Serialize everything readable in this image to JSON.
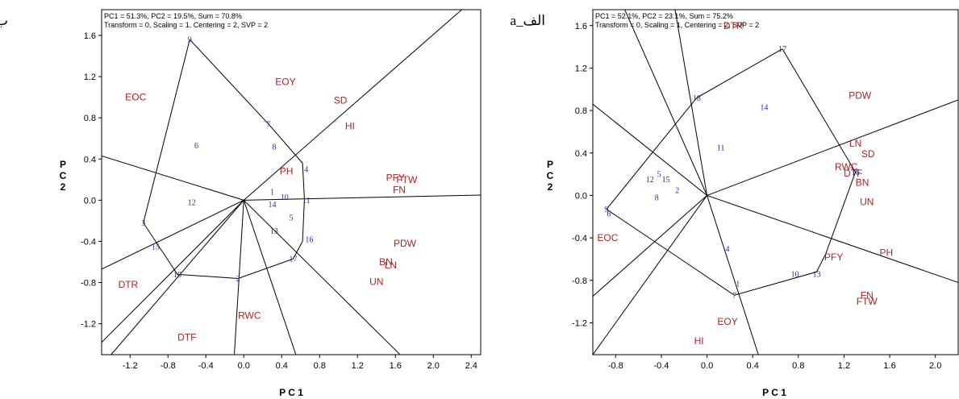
{
  "chart_data": [
    {
      "type": "scatter",
      "panel_label": "ب_b",
      "header_line1": "PC1 = 51.3%, PC2 = 19.5%, Sum = 70.8%",
      "header_line2": "Transform = 0, Scaling = 1, Centering = 2, SVP = 2",
      "xlabel": "P C 1",
      "ylabel": "P C 2",
      "xlim": [
        -1.5,
        2.5
      ],
      "ylim": [
        -1.5,
        1.85
      ],
      "xticks": [
        -1.2,
        -0.8,
        -0.4,
        0.0,
        0.4,
        0.8,
        1.2,
        1.6,
        2.0,
        2.4
      ],
      "yticks": [
        -1.2,
        -0.8,
        -0.4,
        0.0,
        0.4,
        0.8,
        1.2,
        1.6
      ],
      "trait_color": "#b22222",
      "genotype_color": "#1f2fb0",
      "traits": [
        {
          "label": "EOC",
          "x": -1.14,
          "y": 1.0
        },
        {
          "label": "EOY",
          "x": 0.44,
          "y": 1.15
        },
        {
          "label": "SD",
          "x": 1.02,
          "y": 0.97
        },
        {
          "label": "HI",
          "x": 1.12,
          "y": 0.72
        },
        {
          "label": "PH",
          "x": 0.45,
          "y": 0.28
        },
        {
          "label": "PFY",
          "x": 1.6,
          "y": 0.22
        },
        {
          "label": "FTW",
          "x": 1.72,
          "y": 0.2
        },
        {
          "label": "FN",
          "x": 1.64,
          "y": 0.1
        },
        {
          "label": "PDW",
          "x": 1.7,
          "y": -0.42
        },
        {
          "label": "BN",
          "x": 1.5,
          "y": -0.6
        },
        {
          "label": "LN",
          "x": 1.55,
          "y": -0.63
        },
        {
          "label": "UN",
          "x": 1.4,
          "y": -0.79
        },
        {
          "label": "DTR",
          "x": -1.22,
          "y": -0.82
        },
        {
          "label": "RWC",
          "x": 0.06,
          "y": -1.12
        },
        {
          "label": "DTF",
          "x": -0.6,
          "y": -1.33
        }
      ],
      "genotypes": [
        {
          "label": "9",
          "x": -0.57,
          "y": 1.56
        },
        {
          "label": "7",
          "x": 0.26,
          "y": 0.74
        },
        {
          "label": "6",
          "x": -0.5,
          "y": 0.53
        },
        {
          "label": "8",
          "x": 0.32,
          "y": 0.52
        },
        {
          "label": "4",
          "x": 0.66,
          "y": 0.3
        },
        {
          "label": "1",
          "x": 0.3,
          "y": 0.08
        },
        {
          "label": "10",
          "x": 0.43,
          "y": 0.03
        },
        {
          "label": "11",
          "x": 0.66,
          "y": 0.0
        },
        {
          "label": "12",
          "x": -0.55,
          "y": -0.02
        },
        {
          "label": "14",
          "x": 0.3,
          "y": -0.04
        },
        {
          "label": "5",
          "x": 0.5,
          "y": -0.17
        },
        {
          "label": "3",
          "x": -1.06,
          "y": -0.22
        },
        {
          "label": "13",
          "x": 0.32,
          "y": -0.3
        },
        {
          "label": "16",
          "x": 0.69,
          "y": -0.38
        },
        {
          "label": "15",
          "x": -0.93,
          "y": -0.45
        },
        {
          "label": "17",
          "x": 0.52,
          "y": -0.57
        },
        {
          "label": "18",
          "x": -0.7,
          "y": -0.72
        },
        {
          "label": "2",
          "x": -0.06,
          "y": -0.76
        }
      ],
      "hull": [
        [
          -0.57,
          1.56
        ],
        [
          0.26,
          0.74
        ],
        [
          0.62,
          0.36
        ],
        [
          0.64,
          0.01
        ],
        [
          0.62,
          -0.4
        ],
        [
          0.52,
          -0.57
        ],
        [
          -0.06,
          -0.76
        ],
        [
          -0.7,
          -0.72
        ],
        [
          -1.06,
          -0.22
        ],
        [
          -0.57,
          1.56
        ]
      ],
      "rays": [
        [
          -1.5,
          0.43
        ],
        [
          2.5,
          0.05
        ],
        [
          2.3,
          1.85
        ],
        [
          -1.5,
          -0.67
        ],
        [
          -1.5,
          -1.38
        ],
        [
          -1.4,
          -1.5
        ],
        [
          -0.1,
          -1.5
        ],
        [
          0.55,
          -1.5
        ],
        [
          1.65,
          -1.5
        ]
      ]
    },
    {
      "type": "scatter",
      "panel_label": "الف_a",
      "header_line1": "PC1 = 52.1%, PC2 = 23.1%, Sum = 75.2%",
      "header_line2": "Transform = 0, Scaling = 1, Centering = 2, SVP = 2",
      "xlabel": "P C 1",
      "ylabel": "P C 2",
      "xlim": [
        -1.0,
        2.2
      ],
      "ylim": [
        -1.5,
        1.75
      ],
      "xticks": [
        -0.8,
        -0.4,
        0.0,
        0.4,
        0.8,
        1.2,
        1.6,
        2.0
      ],
      "yticks": [
        -1.2,
        -0.8,
        -0.4,
        0.0,
        0.4,
        0.8,
        1.2,
        1.6
      ],
      "trait_color": "#b22222",
      "genotype_color": "#1f2fb0",
      "traits": [
        {
          "label": "DTR",
          "x": 0.23,
          "y": 1.6
        },
        {
          "label": "PDW",
          "x": 1.34,
          "y": 0.94
        },
        {
          "label": "LN",
          "x": 1.3,
          "y": 0.49
        },
        {
          "label": "SD",
          "x": 1.41,
          "y": 0.39
        },
        {
          "label": "RWC",
          "x": 1.22,
          "y": 0.27
        },
        {
          "label": "DTF",
          "x": 1.28,
          "y": 0.21
        },
        {
          "label": "BN",
          "x": 1.36,
          "y": 0.12
        },
        {
          "label": "UN",
          "x": 1.4,
          "y": -0.06
        },
        {
          "label": "EOC",
          "x": -0.87,
          "y": -0.4
        },
        {
          "label": "PFY",
          "x": 1.11,
          "y": -0.58
        },
        {
          "label": "PH",
          "x": 1.57,
          "y": -0.54
        },
        {
          "label": "FN",
          "x": 1.4,
          "y": -0.94
        },
        {
          "label": "FTW",
          "x": 1.4,
          "y": -1.0
        },
        {
          "label": "EOY",
          "x": 0.18,
          "y": -1.19
        },
        {
          "label": "HI",
          "x": -0.07,
          "y": -1.37
        }
      ],
      "genotypes": [
        {
          "label": "17",
          "x": 0.66,
          "y": 1.38
        },
        {
          "label": "18",
          "x": -0.09,
          "y": 0.92
        },
        {
          "label": "14",
          "x": 0.5,
          "y": 0.83
        },
        {
          "label": "11",
          "x": 0.12,
          "y": 0.45
        },
        {
          "label": "16",
          "x": 1.3,
          "y": 0.22
        },
        {
          "label": "5",
          "x": -0.42,
          "y": 0.2
        },
        {
          "label": "12",
          "x": -0.5,
          "y": 0.15
        },
        {
          "label": "15",
          "x": -0.36,
          "y": 0.15
        },
        {
          "label": "2",
          "x": -0.26,
          "y": 0.05
        },
        {
          "label": "8",
          "x": -0.44,
          "y": -0.02
        },
        {
          "label": "9",
          "x": -0.88,
          "y": -0.13
        },
        {
          "label": "6",
          "x": -0.86,
          "y": -0.17
        },
        {
          "label": "4",
          "x": 0.18,
          "y": -0.5
        },
        {
          "label": "10",
          "x": 0.77,
          "y": -0.74
        },
        {
          "label": "13",
          "x": 0.96,
          "y": -0.74
        },
        {
          "label": "1",
          "x": 0.27,
          "y": -0.83
        },
        {
          "label": "7",
          "x": 0.24,
          "y": -0.94
        }
      ],
      "hull": [
        [
          0.66,
          1.38
        ],
        [
          1.3,
          0.22
        ],
        [
          1.04,
          -0.55
        ],
        [
          0.96,
          -0.72
        ],
        [
          0.24,
          -0.94
        ],
        [
          -0.88,
          -0.13
        ],
        [
          -0.09,
          0.92
        ],
        [
          0.66,
          1.38
        ]
      ],
      "rays": [
        [
          -0.72,
          1.75
        ],
        [
          2.2,
          0.9
        ],
        [
          2.2,
          -0.82
        ],
        [
          -1.0,
          0.86
        ],
        [
          -1.0,
          -0.95
        ],
        [
          -1.0,
          -1.5
        ],
        [
          0.45,
          -1.5
        ],
        [
          -0.28,
          1.75
        ]
      ]
    }
  ]
}
